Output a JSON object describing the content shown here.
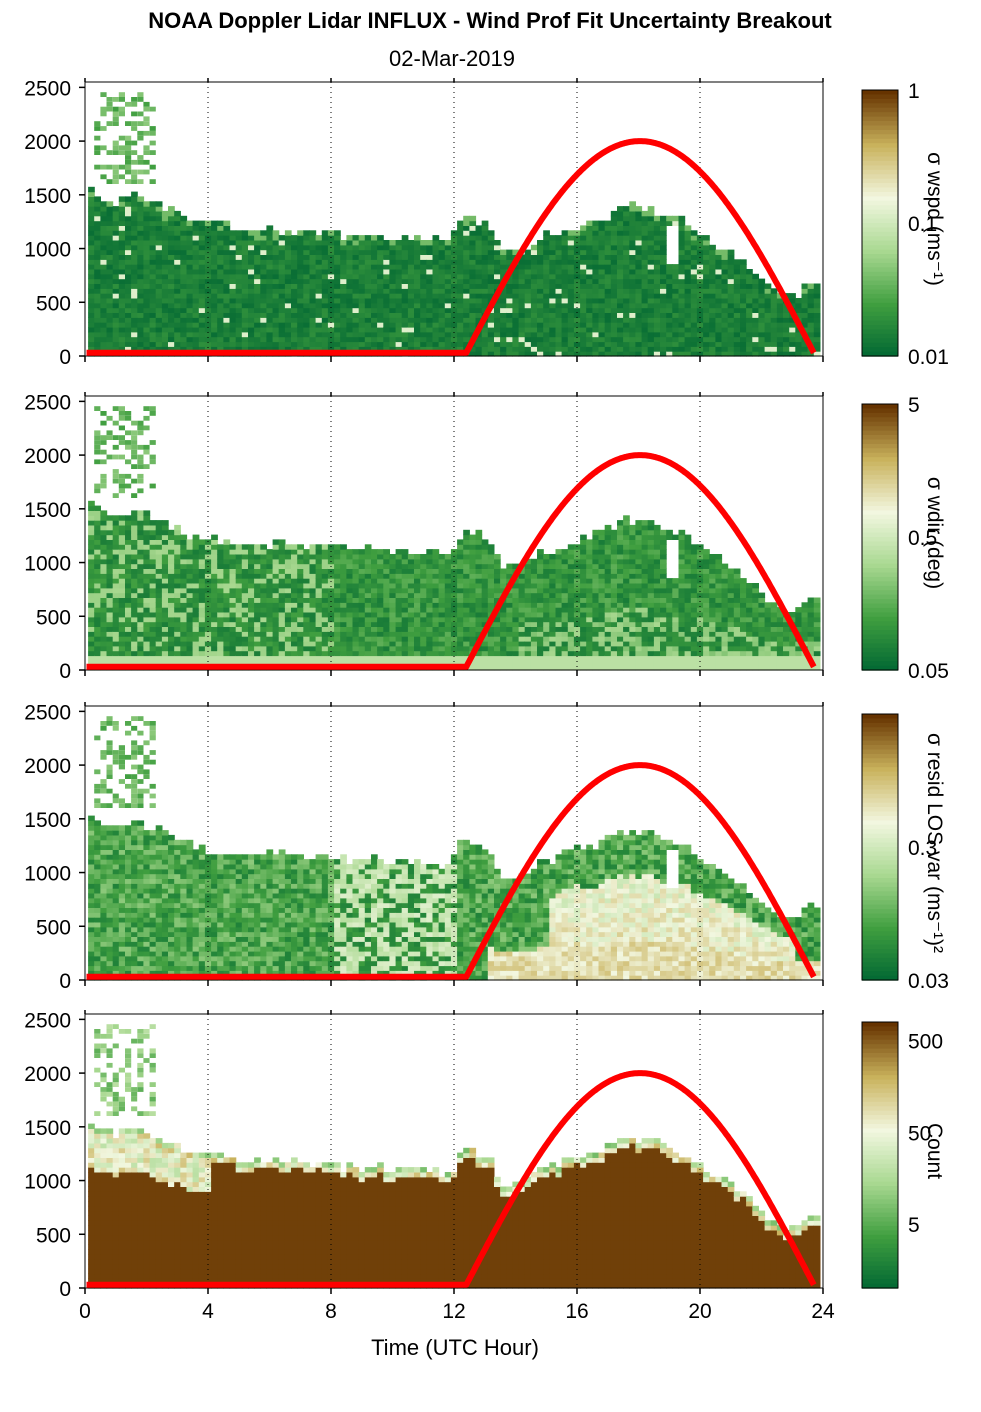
{
  "figure": {
    "title": "NOAA Doppler Lidar INFLUX - Wind Prof Fit Uncertainty Breakout",
    "date": "02-Mar-2019",
    "xlabel": "Time (UTC Hour)"
  },
  "colors": {
    "dark_green": "#006633",
    "mid_green": "#3f9e3f",
    "light_green": "#a8d890",
    "pale": "#f2f7e0",
    "khaki": "#c9b25c",
    "brown": "#663300",
    "sun_curve": "#ff0000"
  },
  "chart_data": [
    {
      "type": "heatmap",
      "colorbar_label": "σ wspd (ms⁻¹)",
      "colorbar_ticks": [
        "1",
        "0.1",
        "0.01"
      ],
      "colorbar_range": [
        0.01,
        1
      ],
      "colorbar_scale": "log",
      "xlim": [
        0,
        24
      ],
      "ylim": [
        0,
        2550
      ],
      "x_ticks": [
        0,
        4,
        8,
        12,
        16,
        20,
        24
      ],
      "y_ticks": [
        0,
        500,
        1000,
        1500,
        2000,
        2500
      ],
      "dominant_level": 0.05,
      "note_colors": "mostly dark green below data top"
    },
    {
      "type": "heatmap",
      "colorbar_label": "σ wdir (deg)",
      "colorbar_ticks": [
        "5",
        "0.5",
        "0.05"
      ],
      "colorbar_range": [
        0.05,
        5
      ],
      "colorbar_scale": "log",
      "xlim": [
        0,
        24
      ],
      "ylim": [
        0,
        2550
      ],
      "x_ticks": [
        0,
        4,
        8,
        12,
        16,
        20,
        24
      ],
      "y_ticks": [
        0,
        500,
        1000,
        1500,
        2000,
        2500
      ],
      "dominant_level": 0.2
    },
    {
      "type": "heatmap",
      "colorbar_label": "σ resid LOS var (ms⁻¹)²",
      "colorbar_ticks": [
        "0.3",
        "0.03"
      ],
      "colorbar_range": [
        0.03,
        3
      ],
      "colorbar_scale": "log",
      "xlim": [
        0,
        24
      ],
      "ylim": [
        0,
        2550
      ],
      "x_ticks": [
        0,
        4,
        8,
        12,
        16,
        20,
        24
      ],
      "y_ticks": [
        0,
        500,
        1000,
        1500,
        2000,
        2500
      ],
      "dominant_level": 0.1
    },
    {
      "type": "heatmap",
      "colorbar_label": "Count",
      "colorbar_ticks": [
        "500",
        "50",
        "5"
      ],
      "colorbar_range": [
        1,
        800
      ],
      "colorbar_scale": "log",
      "xlim": [
        0,
        24
      ],
      "ylim": [
        0,
        2550
      ],
      "x_ticks": [
        0,
        4,
        8,
        12,
        16,
        20,
        24
      ],
      "y_ticks": [
        0,
        500,
        1000,
        1500,
        2000,
        2500
      ],
      "dominant_level": 700
    }
  ],
  "data_top_profile": {
    "hours": [
      0.0,
      0.3,
      0.5,
      1.0,
      1.5,
      2.0,
      2.5,
      3.0,
      3.5,
      4.0,
      5.0,
      6.0,
      7.0,
      8.0,
      9.0,
      10.0,
      11.0,
      11.8,
      12.2,
      12.6,
      13.0,
      13.5,
      14.0,
      14.5,
      15.0,
      15.5,
      16.0,
      16.5,
      17.0,
      17.5,
      18.0,
      18.5,
      19.0,
      19.5,
      20.0,
      20.5,
      21.0,
      21.5,
      22.0,
      22.5,
      23.0,
      23.5,
      23.8
    ],
    "heights": [
      1530,
      1480,
      1450,
      1420,
      1470,
      1400,
      1350,
      1300,
      1220,
      1200,
      1160,
      1150,
      1140,
      1120,
      1100,
      1090,
      1070,
      1060,
      1280,
      1250,
      1200,
      940,
      950,
      1050,
      1100,
      1150,
      1200,
      1240,
      1300,
      1370,
      1350,
      1320,
      1280,
      1200,
      1100,
      1000,
      920,
      810,
      650,
      560,
      530,
      650,
      650
    ]
  },
  "sun_elevation_curve": {
    "label": "",
    "rise_hour": 12.4,
    "peak_hour": 18.0,
    "set_hour": 23.7,
    "peak_height": 2000,
    "baseline_height": 30
  }
}
